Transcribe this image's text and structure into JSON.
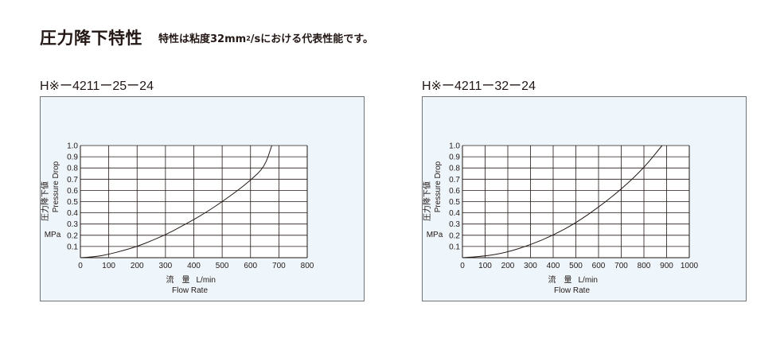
{
  "header": {
    "title": "圧力降下特性",
    "subtitle_pre": "特性は粘度32mm",
    "subtitle_sup": "2",
    "subtitle_post": "/sにおける代表性能です。"
  },
  "charts": [
    {
      "model": "H※ー4211ー25ー24"
    },
    {
      "model": "H※ー4211ー32ー24"
    }
  ],
  "chart_data": [
    {
      "type": "line",
      "title": "H※ー4211ー25ー24",
      "xlabel_jp": "流　量",
      "xlabel_unit": "L/min",
      "xlabel_en": "Flow Rate",
      "ylabel_jp": "圧力降下値",
      "ylabel_en": "Pressure Drop",
      "ylabel_unit": "MPa",
      "xlim": [
        0,
        800
      ],
      "ylim": [
        0,
        1.0
      ],
      "xticks": [
        "0",
        "100",
        "200",
        "300",
        "400",
        "500",
        "600",
        "700",
        "800"
      ],
      "yticks": [
        "0.1",
        "0.2",
        "0.3",
        "0.4",
        "0.5",
        "0.6",
        "0.7",
        "0.8",
        "0.9",
        "1.0"
      ],
      "grid": true,
      "series": [
        {
          "x": [
            0,
            50,
            100,
            150,
            200,
            250,
            300,
            350,
            400,
            450,
            500,
            550,
            600,
            650,
            675
          ],
          "y": [
            0.0,
            0.008,
            0.03,
            0.063,
            0.1,
            0.15,
            0.205,
            0.27,
            0.34,
            0.415,
            0.5,
            0.59,
            0.69,
            0.81,
            1.0
          ]
        }
      ]
    },
    {
      "type": "line",
      "title": "H※ー4211ー32ー24",
      "xlabel_jp": "流　量",
      "xlabel_unit": "L/min",
      "xlabel_en": "Flow Rate",
      "ylabel_jp": "圧力降下値",
      "ylabel_en": "Pressure Drop",
      "ylabel_unit": "MPa",
      "xlim": [
        0,
        1000
      ],
      "ylim": [
        0,
        1.0
      ],
      "xticks": [
        "0",
        "100",
        "200",
        "300",
        "400",
        "500",
        "600",
        "700",
        "800",
        "900",
        "1000"
      ],
      "yticks": [
        "0.1",
        "0.2",
        "0.3",
        "0.4",
        "0.5",
        "0.6",
        "0.7",
        "0.8",
        "0.9",
        "1.0"
      ],
      "grid": true,
      "series": [
        {
          "x": [
            0,
            100,
            200,
            300,
            400,
            500,
            600,
            700,
            800,
            880
          ],
          "y": [
            0.0,
            0.012,
            0.05,
            0.115,
            0.2,
            0.31,
            0.45,
            0.61,
            0.8,
            1.0
          ]
        }
      ]
    }
  ]
}
